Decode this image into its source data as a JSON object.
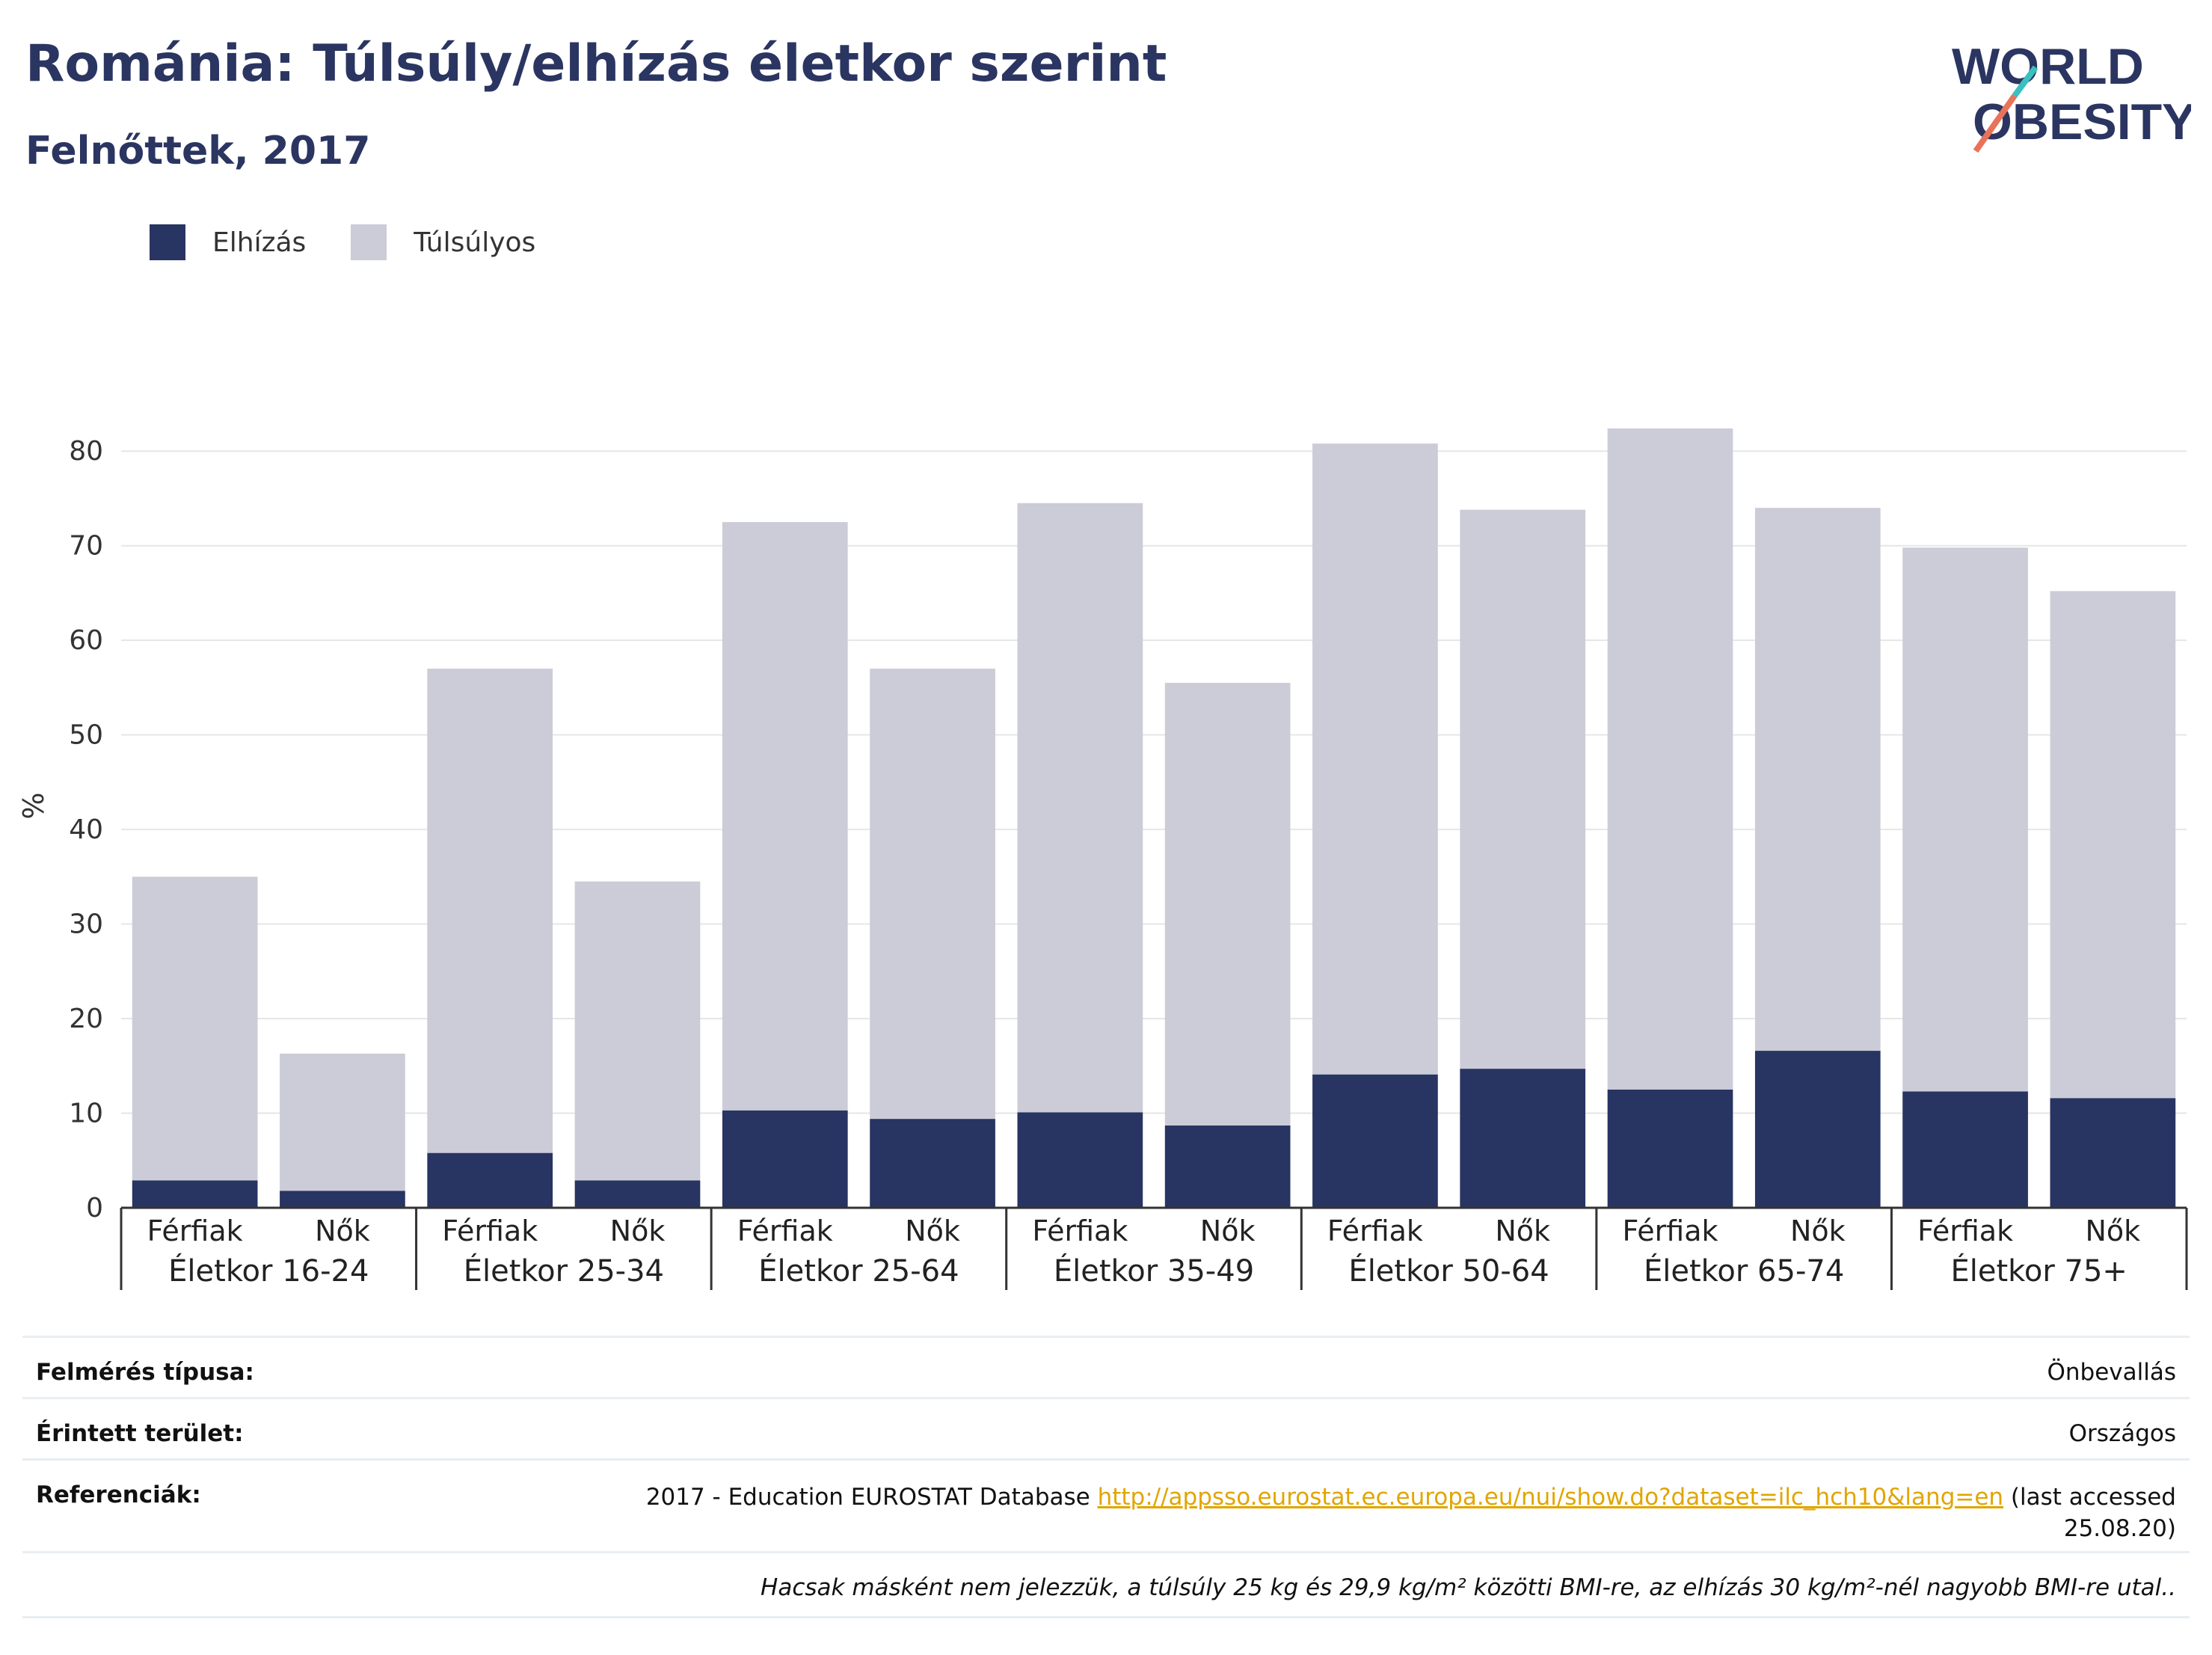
{
  "header": {
    "title": "Románia: Túlsúly/elhízás életkor szerint",
    "subtitle": "Felnőttek, 2017"
  },
  "logo": {
    "line1": "WORLD",
    "line2": "OBESITY",
    "accent_teal": "#3bbfbf",
    "accent_coral": "#e8735a"
  },
  "colors": {
    "obese": "#283462",
    "overweight": "#cbccd7",
    "grid": "#e6e6e6",
    "axis": "#333333"
  },
  "chart_data": {
    "type": "bar",
    "stacked": true,
    "ylabel": "%",
    "ylim": [
      0,
      85
    ],
    "yticks": [
      0,
      10,
      20,
      30,
      40,
      50,
      60,
      70,
      80
    ],
    "grid": true,
    "legend": {
      "placement": "top-left",
      "items": [
        "Elhízás",
        "Túlsúlyos"
      ]
    },
    "groups": [
      "Életkor 16-24",
      "Életkor 25-34",
      "Életkor 25-64",
      "Életkor 35-49",
      "Életkor 50-64",
      "Életkor 65-74",
      "Életkor 75+"
    ],
    "sublabels": [
      "Férfiak",
      "Nők"
    ],
    "series": [
      {
        "name": "Elhízás",
        "values": [
          2.9,
          1.8,
          5.8,
          2.9,
          10.3,
          9.4,
          10.1,
          8.7,
          14.1,
          14.7,
          12.5,
          16.6,
          12.3,
          11.6
        ]
      },
      {
        "name": "Túlsúlyos",
        "values": [
          32.1,
          14.5,
          51.2,
          31.6,
          62.2,
          47.6,
          64.4,
          46.8,
          66.7,
          59.1,
          69.9,
          57.4,
          57.5,
          53.6
        ]
      }
    ]
  },
  "footer": {
    "rows": [
      {
        "label": "Felmérés típusa:",
        "value": "Önbevallás"
      },
      {
        "label": "Érintett terület:",
        "value": "Országos"
      },
      {
        "label": "Referenciák:",
        "value_prefix": "2017 - Education EUROSTAT Database ",
        "link": "http://appsso.eurostat.ec.europa.eu/nui/show.do?dataset=ilc_hch10&lang=en",
        "value_suffix": " (last accessed",
        "value_line2": "25.08.20)"
      }
    ],
    "note": "Hacsak másként nem jelezzük, a túlsúly 25 kg és 29,9 kg/m² közötti BMI-re, az elhízás 30 kg/m²-nél nagyobb BMI-re utal.."
  }
}
